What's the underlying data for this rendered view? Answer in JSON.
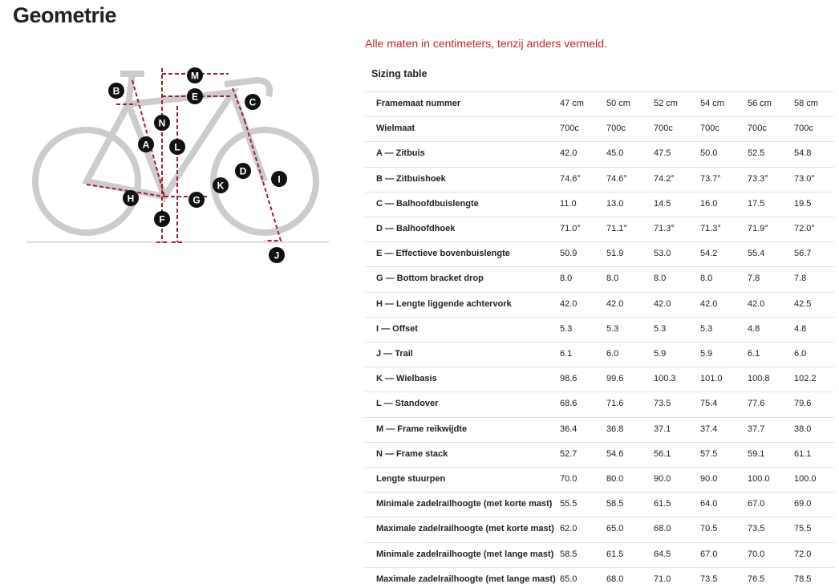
{
  "header": {
    "title": "Geometrie"
  },
  "note": "Alle maten in centimeters, tenzij anders vermeld.",
  "diagram": {
    "labels": [
      "B",
      "M",
      "E",
      "C",
      "N",
      "A",
      "L",
      "D",
      "I",
      "K",
      "H",
      "G",
      "F",
      "J"
    ]
  },
  "table": {
    "title": "Sizing table",
    "rows": [
      [
        "Framemaat nummer",
        "47 cm",
        "50 cm",
        "52 cm",
        "54 cm",
        "56 cm",
        "58 cm"
      ],
      [
        "Wielmaat",
        "700c",
        "700c",
        "700c",
        "700c",
        "700c",
        "700c"
      ],
      [
        "A — Zitbuis",
        "42.0",
        "45.0",
        "47.5",
        "50.0",
        "52.5",
        "54.8"
      ],
      [
        "B — Zitbuishoek",
        "74.6°",
        "74.6°",
        "74.2°",
        "73.7°",
        "73.3°",
        "73.0°"
      ],
      [
        "C — Balhoofdbuislengte",
        "11.0",
        "13.0",
        "14.5",
        "16.0",
        "17.5",
        "19.5"
      ],
      [
        "D — Balhoofdhoek",
        "71.0°",
        "71.1°",
        "71.3°",
        "71.3°",
        "71.9°",
        "72.0°"
      ],
      [
        "E — Effectieve bovenbuislengte",
        "50.9",
        "51.9",
        "53.0",
        "54.2",
        "55.4",
        "56.7"
      ],
      [
        "G — Bottom bracket drop",
        "8.0",
        "8.0",
        "8.0",
        "8.0",
        "7.8",
        "7.8"
      ],
      [
        "H — Lengte liggende achtervork",
        "42.0",
        "42.0",
        "42.0",
        "42.0",
        "42.0",
        "42.5"
      ],
      [
        "I — Offset",
        "5.3",
        "5.3",
        "5.3",
        "5.3",
        "4.8",
        "4.8"
      ],
      [
        "J — Trail",
        "6.1",
        "6.0",
        "5.9",
        "5.9",
        "6.1",
        "6.0"
      ],
      [
        "K — Wielbasis",
        "98.6",
        "99.6",
        "100.3",
        "101.0",
        "100.8",
        "102.2"
      ],
      [
        "L — Standover",
        "68.6",
        "71.6",
        "73.5",
        "75.4",
        "77.6",
        "79.6"
      ],
      [
        "M — Frame reikwijdte",
        "36.4",
        "36.8",
        "37.1",
        "37.4",
        "37.7",
        "38.0"
      ],
      [
        "N — Frame stack",
        "52.7",
        "54.6",
        "56.1",
        "57.5",
        "59.1",
        "61.1"
      ],
      [
        "Lengte stuurpen",
        "70.0",
        "80.0",
        "90.0",
        "90.0",
        "100.0",
        "100.0"
      ],
      [
        "Minimale zadelrailhoogte (met korte mast)",
        "55.5",
        "58.5",
        "61.5",
        "64.0",
        "67.0",
        "69.0"
      ],
      [
        "Maximale zadelrailhoogte (met korte mast)",
        "62.0",
        "65.0",
        "68.0",
        "70.5",
        "73.5",
        "75.5"
      ],
      [
        "Minimale zadelrailhoogte (met lange mast)",
        "58.5",
        "61.5",
        "64.5",
        "67.0",
        "70.0",
        "72.0"
      ],
      [
        "Maximale zadelrailhoogte (met lange mast)",
        "65.0",
        "68.0",
        "71.0",
        "73.5",
        "76.5",
        "78.5"
      ]
    ]
  }
}
